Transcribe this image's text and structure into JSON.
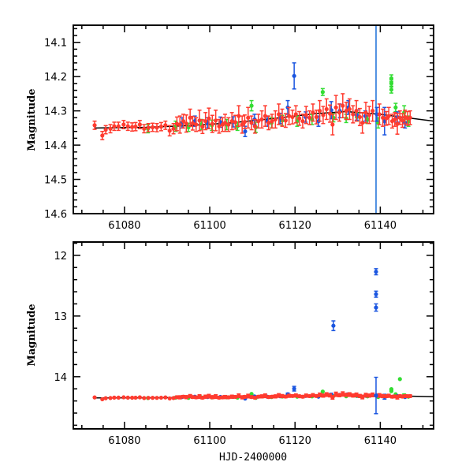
{
  "chart_data": [
    {
      "type": "scatter",
      "panel": "top",
      "title": "",
      "xlabel": "",
      "ylabel": "Magnitude",
      "xlim": [
        61068,
        61152.5
      ],
      "ylim": [
        14.6,
        14.05
      ],
      "y_inverted": true,
      "x_ticks": [
        61080,
        61100,
        61120,
        61140
      ],
      "x_tick_labels": [
        "61080",
        "61100",
        "61120",
        "61140"
      ],
      "x_minor_step": 5,
      "y_ticks": [
        14.1,
        14.2,
        14.3,
        14.4,
        14.5,
        14.6
      ],
      "y_tick_labels": [
        "14.1",
        "14.2",
        "14.3",
        "14.4",
        "14.5",
        "14.6"
      ],
      "y_minor_step": 0.02,
      "grid": false,
      "vertical_line": {
        "x": 61139,
        "color": "#1a6fd8"
      },
      "trend_line": {
        "x": [
          61073,
          61085,
          61095,
          61105,
          61115,
          61125,
          61132,
          61140,
          61152.5
        ],
        "y": [
          14.35,
          14.348,
          14.343,
          14.335,
          14.322,
          14.308,
          14.302,
          14.31,
          14.33
        ],
        "color": "#000000"
      }
    },
    {
      "type": "scatter",
      "panel": "bottom",
      "title": "",
      "xlabel": "HJD-2400000",
      "ylabel": "Magnitude",
      "xlim": [
        61068,
        61152.5
      ],
      "ylim": [
        14.86,
        11.78
      ],
      "y_inverted": true,
      "x_ticks": [
        61080,
        61100,
        61120,
        61140
      ],
      "x_tick_labels": [
        "61080",
        "61100",
        "61120",
        "61140"
      ],
      "x_minor_step": 5,
      "y_ticks": [
        12,
        13,
        14
      ],
      "y_tick_labels": [
        "12",
        "13",
        "14"
      ],
      "y_minor_step": 0.2,
      "grid": false,
      "trend_line": {
        "x": [
          61073,
          61085,
          61095,
          61105,
          61115,
          61125,
          61132,
          61140,
          61152.5
        ],
        "y": [
          14.35,
          14.348,
          14.343,
          14.335,
          14.322,
          14.308,
          14.302,
          14.31,
          14.33
        ],
        "color": "#000000"
      }
    }
  ],
  "series": [
    {
      "name": "red",
      "color": "#ff3b2f",
      "points": [
        [
          61073.0,
          14.342,
          0.012
        ],
        [
          61074.8,
          14.372,
          0.012
        ],
        [
          61075.6,
          14.355,
          0.012
        ],
        [
          61076.7,
          14.352,
          0.012
        ],
        [
          61077.6,
          14.345,
          0.012
        ],
        [
          61078.6,
          14.345,
          0.012
        ],
        [
          61079.8,
          14.34,
          0.012
        ],
        [
          61080.8,
          14.345,
          0.012
        ],
        [
          61081.8,
          14.347,
          0.012
        ],
        [
          61082.6,
          14.346,
          0.012
        ],
        [
          61083.6,
          14.34,
          0.012
        ],
        [
          61084.6,
          14.352,
          0.012
        ],
        [
          61085.6,
          14.349,
          0.012
        ],
        [
          61086.6,
          14.348,
          0.012
        ],
        [
          61087.6,
          14.349,
          0.012
        ],
        [
          61088.6,
          14.346,
          0.012
        ],
        [
          61089.6,
          14.342,
          0.012
        ],
        [
          61090.6,
          14.358,
          0.015
        ],
        [
          61091.5,
          14.352,
          0.015
        ],
        [
          61092.3,
          14.338,
          0.02
        ],
        [
          61093.0,
          14.34,
          0.025
        ],
        [
          61093.8,
          14.33,
          0.02
        ],
        [
          61094.5,
          14.337,
          0.025
        ],
        [
          61095.4,
          14.32,
          0.025
        ],
        [
          61096.0,
          14.336,
          0.02
        ],
        [
          61096.8,
          14.34,
          0.02
        ],
        [
          61097.6,
          14.328,
          0.03
        ],
        [
          61098.3,
          14.346,
          0.02
        ],
        [
          61099.0,
          14.33,
          0.025
        ],
        [
          61099.8,
          14.322,
          0.03
        ],
        [
          61100.6,
          14.338,
          0.025
        ],
        [
          61101.4,
          14.328,
          0.03
        ],
        [
          61102.2,
          14.345,
          0.02
        ],
        [
          61103.0,
          14.34,
          0.02
        ],
        [
          61103.6,
          14.335,
          0.025
        ],
        [
          61104.4,
          14.34,
          0.02
        ],
        [
          61105.2,
          14.33,
          0.025
        ],
        [
          61106.0,
          14.333,
          0.02
        ],
        [
          61106.8,
          14.315,
          0.03
        ],
        [
          61107.6,
          14.34,
          0.025
        ],
        [
          61108.2,
          14.332,
          0.02
        ],
        [
          61109.0,
          14.32,
          0.03
        ],
        [
          61109.8,
          14.335,
          0.02
        ],
        [
          61110.6,
          14.345,
          0.02
        ],
        [
          61111.4,
          14.33,
          0.02
        ],
        [
          61112.2,
          14.325,
          0.025
        ],
        [
          61113.0,
          14.315,
          0.03
        ],
        [
          61113.8,
          14.335,
          0.02
        ],
        [
          61114.6,
          14.33,
          0.02
        ],
        [
          61115.4,
          14.325,
          0.025
        ],
        [
          61116.2,
          14.31,
          0.03
        ],
        [
          61117.0,
          14.32,
          0.025
        ],
        [
          61117.8,
          14.328,
          0.02
        ],
        [
          61118.6,
          14.315,
          0.025
        ],
        [
          61119.4,
          14.318,
          0.02
        ],
        [
          61120.2,
          14.31,
          0.025
        ],
        [
          61121.0,
          14.322,
          0.02
        ],
        [
          61121.8,
          14.33,
          0.02
        ],
        [
          61122.6,
          14.312,
          0.025
        ],
        [
          61123.4,
          14.32,
          0.02
        ],
        [
          61124.2,
          14.305,
          0.025
        ],
        [
          61125.0,
          14.318,
          0.02
        ],
        [
          61125.8,
          14.3,
          0.03
        ],
        [
          61126.6,
          14.312,
          0.025
        ],
        [
          61127.4,
          14.295,
          0.03
        ],
        [
          61128.2,
          14.308,
          0.025
        ],
        [
          61128.8,
          14.34,
          0.03
        ],
        [
          61129.6,
          14.29,
          0.035
        ],
        [
          61130.4,
          14.305,
          0.025
        ],
        [
          61131.2,
          14.285,
          0.035
        ],
        [
          61132.0,
          14.3,
          0.025
        ],
        [
          61132.8,
          14.295,
          0.03
        ],
        [
          61133.6,
          14.31,
          0.025
        ],
        [
          61134.4,
          14.3,
          0.03
        ],
        [
          61135.2,
          14.318,
          0.025
        ],
        [
          61135.8,
          14.335,
          0.03
        ],
        [
          61136.6,
          14.305,
          0.03
        ],
        [
          61137.4,
          14.312,
          0.025
        ],
        [
          61138.2,
          14.3,
          0.03
        ],
        [
          61139.8,
          14.31,
          0.03
        ],
        [
          61140.6,
          14.32,
          0.025
        ],
        [
          61141.4,
          14.322,
          0.02
        ],
        [
          61142.0,
          14.315,
          0.025
        ],
        [
          61142.8,
          14.33,
          0.02
        ],
        [
          61143.4,
          14.325,
          0.02
        ],
        [
          61144.0,
          14.338,
          0.03
        ],
        [
          61144.6,
          14.32,
          0.02
        ],
        [
          61145.2,
          14.328,
          0.02
        ],
        [
          61145.8,
          14.318,
          0.02
        ],
        [
          61146.4,
          14.322,
          0.02
        ],
        [
          61147.0,
          14.32,
          0.02
        ]
      ]
    },
    {
      "name": "blue",
      "color": "#1a55e0",
      "points": [
        [
          61093.5,
          14.335,
          0.015
        ],
        [
          61096.5,
          14.33,
          0.015
        ],
        [
          61099.5,
          14.335,
          0.015
        ],
        [
          61102.5,
          14.333,
          0.015
        ],
        [
          61105.5,
          14.332,
          0.015
        ],
        [
          61108.3,
          14.36,
          0.015
        ],
        [
          61110.5,
          14.325,
          0.015
        ],
        [
          61113.5,
          14.33,
          0.015
        ],
        [
          61116.5,
          14.322,
          0.015
        ],
        [
          61118.3,
          14.29,
          0.02
        ],
        [
          61119.8,
          14.198,
          0.038
        ],
        [
          61122.5,
          14.318,
          0.015
        ],
        [
          61125.5,
          14.33,
          0.015
        ],
        [
          61128.5,
          14.298,
          0.025
        ],
        [
          61130.5,
          14.3,
          0.02
        ],
        [
          61132.5,
          14.29,
          0.02
        ],
        [
          61134.5,
          14.312,
          0.015
        ],
        [
          61136.5,
          14.315,
          0.015
        ],
        [
          61139.2,
          14.31,
          0.02
        ],
        [
          61141.0,
          14.33,
          0.04
        ],
        [
          61144.0,
          14.318,
          0.015
        ],
        [
          61145.8,
          14.335,
          0.015
        ]
      ]
    },
    {
      "name": "green",
      "color": "#33dd33",
      "points": [
        [
          61085.5,
          14.352,
          0.012
        ],
        [
          61092.0,
          14.345,
          0.015
        ],
        [
          61095.0,
          14.348,
          0.012
        ],
        [
          61098.0,
          14.34,
          0.015
        ],
        [
          61100.5,
          14.342,
          0.015
        ],
        [
          61104.0,
          14.34,
          0.015
        ],
        [
          61106.5,
          14.345,
          0.012
        ],
        [
          61109.8,
          14.285,
          0.015
        ],
        [
          61110.8,
          14.348,
          0.015
        ],
        [
          61114.5,
          14.335,
          0.015
        ],
        [
          61117.0,
          14.328,
          0.015
        ],
        [
          61120.5,
          14.33,
          0.015
        ],
        [
          61124.0,
          14.325,
          0.015
        ],
        [
          61126.5,
          14.245,
          0.01
        ],
        [
          61129.0,
          14.32,
          0.012
        ],
        [
          61132.0,
          14.322,
          0.012
        ],
        [
          61134.5,
          14.318,
          0.012
        ],
        [
          61137.0,
          14.325,
          0.012
        ],
        [
          61139.5,
          14.335,
          0.015
        ],
        [
          61142.6,
          14.22,
          0.01
        ],
        [
          61142.6,
          14.205,
          0.01
        ],
        [
          61142.6,
          14.238,
          0.01
        ],
        [
          61143.6,
          14.29,
          0.012
        ],
        [
          61144.6,
          14.04,
          0.01
        ],
        [
          61145.6,
          14.305,
          0.02
        ],
        [
          61146.6,
          14.33,
          0.015
        ]
      ]
    },
    {
      "name": "blue-outliers-bottom-only",
      "color": "#1a55e0",
      "points": [
        [
          61129.0,
          13.16,
          0.08
        ],
        [
          61139.0,
          12.27,
          0.05
        ],
        [
          61139.0,
          12.64,
          0.05
        ],
        [
          61139.0,
          12.86,
          0.06
        ],
        [
          61139.0,
          14.31,
          0.3
        ]
      ]
    }
  ],
  "labels": {
    "top_ylabel": "Magnitude",
    "bottom_ylabel": "Magnitude",
    "bottom_xlabel": "HJD-2400000"
  }
}
